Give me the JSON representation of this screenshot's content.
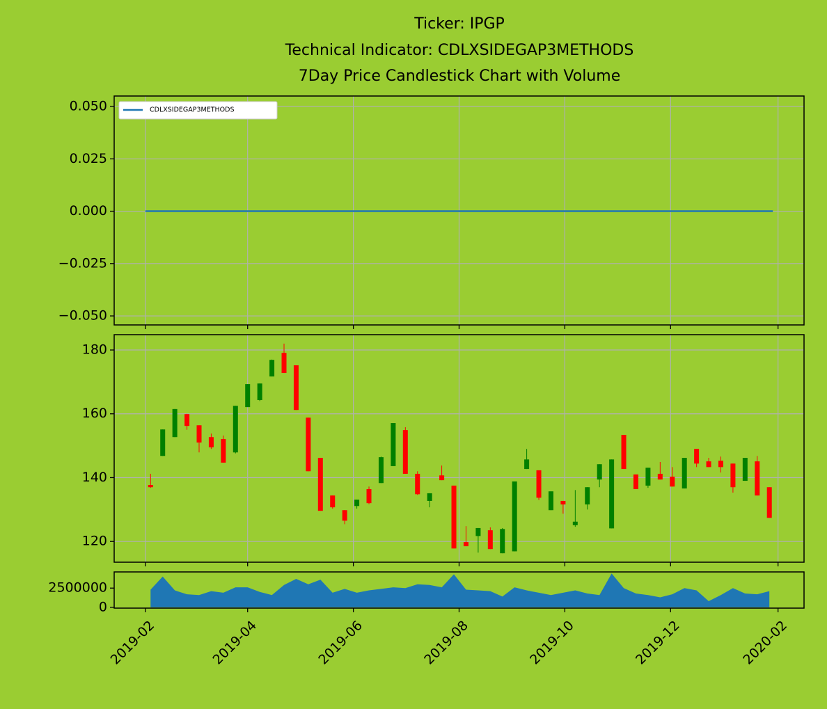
{
  "chart_data": [
    {
      "type": "line",
      "title": [
        "Ticker: IPGP",
        "Technical Indicator: CDLXSIDEGAP3METHODS",
        "7Day Price Candlestick Chart with Volume"
      ],
      "x": [
        "2019-02-01",
        "2020-01-29"
      ],
      "series": [
        {
          "name": "CDLXSIDEGAP3METHODS",
          "color": "#1f77b4",
          "values": [
            0,
            0
          ]
        }
      ],
      "xlim": [
        "2019-01-14",
        "2020-02-16"
      ],
      "xticks": [
        {
          "value": "2019-02-01",
          "label": "2019-02"
        },
        {
          "value": "2019-04-01",
          "label": "2019-04"
        },
        {
          "value": "2019-06-01",
          "label": "2019-06"
        },
        {
          "value": "2019-08-01",
          "label": "2019-08"
        },
        {
          "value": "2019-10-01",
          "label": "2019-10"
        },
        {
          "value": "2019-12-01",
          "label": "2019-12"
        },
        {
          "value": "2020-02-01",
          "label": "2020-02"
        }
      ],
      "ylim": [
        -0.0543,
        0.055
      ],
      "yticks": [
        {
          "value": -0.05,
          "label": "−0.050"
        },
        {
          "value": -0.025,
          "label": "−0.025"
        },
        {
          "value": 0,
          "label": "0.000"
        },
        {
          "value": 0.025,
          "label": "0.025"
        },
        {
          "value": 0.05,
          "label": "0.050"
        }
      ],
      "grid": true,
      "legend": "upper left"
    },
    {
      "type": "candlestick",
      "x": [
        "2019-02-04",
        "2019-02-11",
        "2019-02-18",
        "2019-02-25",
        "2019-03-04",
        "2019-03-11",
        "2019-03-18",
        "2019-03-25",
        "2019-04-01",
        "2019-04-08",
        "2019-04-15",
        "2019-04-22",
        "2019-04-29",
        "2019-05-06",
        "2019-05-13",
        "2019-05-20",
        "2019-05-27",
        "2019-06-03",
        "2019-06-10",
        "2019-06-17",
        "2019-06-24",
        "2019-07-01",
        "2019-07-08",
        "2019-07-15",
        "2019-07-22",
        "2019-07-29",
        "2019-08-05",
        "2019-08-12",
        "2019-08-19",
        "2019-08-26",
        "2019-09-02",
        "2019-09-09",
        "2019-09-16",
        "2019-09-23",
        "2019-09-30",
        "2019-10-07",
        "2019-10-14",
        "2019-10-21",
        "2019-10-28",
        "2019-11-04",
        "2019-11-11",
        "2019-11-18",
        "2019-11-25",
        "2019-12-02",
        "2019-12-09",
        "2019-12-16",
        "2019-12-23",
        "2019-12-30",
        "2020-01-06",
        "2020-01-13",
        "2020-01-20",
        "2020-01-27"
      ],
      "open": [
        137.7,
        146.8,
        152.7,
        159.9,
        156.4,
        152.7,
        152.1,
        147.9,
        162.1,
        164.3,
        171.7,
        179.1,
        175.2,
        158.8,
        146.2,
        134.4,
        129.8,
        131.1,
        136.4,
        138.3,
        143.6,
        154.9,
        141.2,
        132.7,
        140.7,
        137.5,
        119.8,
        121.7,
        123.5,
        116.3,
        116.9,
        142.7,
        142.3,
        129.8,
        132.7,
        125.1,
        131.6,
        139.4,
        124.1,
        153.4,
        141.0,
        137.5,
        141.2,
        140.3,
        136.6,
        149.0,
        145.1,
        145.3,
        144.4,
        139.0,
        145.1,
        137.0
      ],
      "high": [
        141.2,
        155.1,
        161.5,
        160.0,
        156.4,
        153.8,
        153.2,
        162.5,
        169.3,
        169.5,
        177.0,
        182.0,
        175.2,
        158.8,
        146.2,
        134.4,
        129.8,
        133.1,
        137.2,
        146.6,
        157.1,
        155.8,
        142.0,
        135.1,
        143.8,
        137.5,
        124.8,
        124.2,
        124.4,
        124.2,
        138.8,
        149.0,
        142.3,
        135.7,
        132.7,
        136.1,
        137.0,
        144.2,
        145.7,
        153.4,
        141.0,
        143.1,
        144.9,
        143.3,
        146.2,
        149.0,
        146.2,
        146.6,
        144.4,
        146.2,
        146.8,
        137.0
      ],
      "low": [
        136.8,
        146.8,
        152.7,
        155.0,
        147.9,
        149.0,
        144.7,
        147.6,
        162.1,
        164.0,
        171.7,
        172.8,
        161.2,
        142.0,
        129.6,
        130.3,
        125.4,
        130.3,
        131.7,
        138.3,
        143.6,
        141.2,
        134.6,
        130.7,
        139.2,
        117.8,
        118.5,
        116.5,
        117.6,
        116.3,
        116.9,
        142.7,
        133.0,
        129.8,
        128.7,
        124.6,
        130.0,
        137.0,
        124.1,
        142.7,
        136.4,
        136.8,
        139.4,
        137.2,
        136.6,
        143.3,
        143.3,
        141.6,
        135.3,
        139.0,
        134.4,
        127.4
      ],
      "close": [
        137.0,
        155.1,
        161.5,
        156.2,
        151.0,
        149.5,
        144.7,
        162.5,
        169.3,
        169.5,
        176.9,
        172.8,
        161.2,
        142.0,
        129.6,
        130.7,
        126.5,
        133.1,
        132.0,
        146.4,
        157.1,
        141.2,
        134.8,
        135.1,
        139.2,
        117.8,
        118.5,
        124.2,
        117.6,
        123.9,
        138.8,
        145.7,
        133.7,
        135.7,
        131.6,
        126.2,
        137.0,
        144.2,
        145.7,
        142.7,
        136.4,
        143.1,
        139.4,
        137.2,
        146.2,
        144.4,
        143.3,
        143.3,
        137.0,
        146.2,
        134.4,
        127.4
      ],
      "up_color": "green",
      "down_color": "red",
      "xlim": [
        "2019-01-14",
        "2020-02-16"
      ],
      "xticks": [
        {
          "value": "2019-02-01",
          "label": "2019-02"
        },
        {
          "value": "2019-04-01",
          "label": "2019-04"
        },
        {
          "value": "2019-06-01",
          "label": "2019-06"
        },
        {
          "value": "2019-08-01",
          "label": "2019-08"
        },
        {
          "value": "2019-10-01",
          "label": "2019-10"
        },
        {
          "value": "2019-12-01",
          "label": "2019-12"
        },
        {
          "value": "2020-02-01",
          "label": "2020-02"
        }
      ],
      "ylim": [
        113.5,
        184.8
      ],
      "yticks": [
        120,
        140,
        160,
        180
      ],
      "grid": true
    },
    {
      "type": "area",
      "x": [
        "2019-02-04",
        "2019-02-11",
        "2019-02-18",
        "2019-02-25",
        "2019-03-04",
        "2019-03-11",
        "2019-03-18",
        "2019-03-25",
        "2019-04-01",
        "2019-04-08",
        "2019-04-15",
        "2019-04-22",
        "2019-04-29",
        "2019-05-06",
        "2019-05-13",
        "2019-05-20",
        "2019-05-27",
        "2019-06-03",
        "2019-06-10",
        "2019-06-17",
        "2019-06-24",
        "2019-07-01",
        "2019-07-08",
        "2019-07-15",
        "2019-07-22",
        "2019-07-29",
        "2019-08-05",
        "2019-08-12",
        "2019-08-19",
        "2019-08-26",
        "2019-09-02",
        "2019-09-09",
        "2019-09-16",
        "2019-09-23",
        "2019-09-30",
        "2019-10-07",
        "2019-10-14",
        "2019-10-21",
        "2019-10-28",
        "2019-11-04",
        "2019-11-11",
        "2019-11-18",
        "2019-11-25",
        "2019-12-02",
        "2019-12-09",
        "2019-12-16",
        "2019-12-23",
        "2019-12-30",
        "2020-01-06",
        "2020-01-13",
        "2020-01-20",
        "2020-01-27"
      ],
      "values": [
        2300000,
        4000000,
        2200000,
        1700000,
        1600000,
        2100000,
        1900000,
        2600000,
        2600000,
        2000000,
        1600000,
        2900000,
        3700000,
        3000000,
        3600000,
        1900000,
        2400000,
        1900000,
        2200000,
        2400000,
        2600000,
        2500000,
        3000000,
        2900000,
        2600000,
        4300000,
        2300000,
        2200000,
        2100000,
        1400000,
        2600000,
        2200000,
        1900000,
        1600000,
        1900000,
        2200000,
        1800000,
        1600000,
        4400000,
        2500000,
        1800000,
        1600000,
        1300000,
        1700000,
        2500000,
        2200000,
        800000,
        1600000,
        2500000,
        1800000,
        1700000,
        2100000
      ],
      "color": "#1f77b4",
      "xlim": [
        "2019-01-14",
        "2020-02-16"
      ],
      "xticks": [
        {
          "value": "2019-02-01",
          "label": "2019-02"
        },
        {
          "value": "2019-04-01",
          "label": "2019-04"
        },
        {
          "value": "2019-06-01",
          "label": "2019-06"
        },
        {
          "value": "2019-08-01",
          "label": "2019-08"
        },
        {
          "value": "2019-10-01",
          "label": "2019-10"
        },
        {
          "value": "2019-12-01",
          "label": "2019-12"
        },
        {
          "value": "2020-02-01",
          "label": "2020-02"
        }
      ],
      "ylim": [
        -100000,
        4600000
      ],
      "yticks": [
        0,
        2500000
      ],
      "grid": false
    }
  ]
}
